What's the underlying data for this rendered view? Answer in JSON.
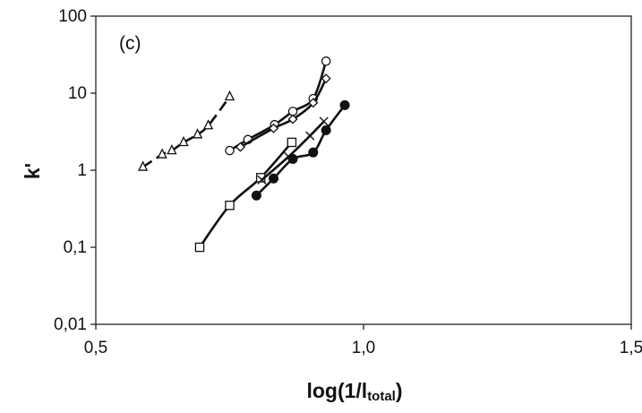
{
  "chart_data": {
    "type": "scatter",
    "panel_label": "(c)",
    "xlabel": "log(1/l",
    "xlabel_sub": "total",
    "xlabel_close": ")",
    "ylabel": "k'",
    "xlim": [
      0.5,
      1.5
    ],
    "ylim": [
      0.01,
      100
    ],
    "yscale": "log",
    "grid": false,
    "x_ticks": [
      {
        "value": 0.5,
        "label": "0,5"
      },
      {
        "value": 1.0,
        "label": "1,0"
      },
      {
        "value": 1.5,
        "label": "1,5"
      }
    ],
    "y_ticks": [
      {
        "value": 0.01,
        "label": "0,01"
      },
      {
        "value": 0.1,
        "label": "0,1"
      },
      {
        "value": 1,
        "label": "1"
      },
      {
        "value": 10,
        "label": "10"
      },
      {
        "value": 100,
        "label": "100"
      }
    ],
    "series": [
      {
        "marker": "triangle-open",
        "line": "dashed",
        "points": [
          [
            0.588,
            1.1
          ],
          [
            0.624,
            1.6
          ],
          [
            0.642,
            1.8
          ],
          [
            0.664,
            2.3
          ],
          [
            0.69,
            2.9
          ],
          [
            0.71,
            3.8
          ],
          [
            0.75,
            9.0
          ]
        ]
      },
      {
        "marker": "circle-open",
        "line": "solid",
        "points": [
          [
            0.75,
            1.8
          ],
          [
            0.784,
            2.5
          ],
          [
            0.834,
            3.9
          ],
          [
            0.868,
            5.8
          ],
          [
            0.906,
            8.5
          ],
          [
            0.93,
            26
          ]
        ]
      },
      {
        "marker": "diamond-open",
        "line": "solid",
        "points": [
          [
            0.77,
            2.0
          ],
          [
            0.832,
            3.5
          ],
          [
            0.868,
            4.6
          ],
          [
            0.906,
            7.5
          ],
          [
            0.93,
            15.5
          ]
        ]
      },
      {
        "marker": "square-open",
        "line": "solid",
        "points": [
          [
            0.694,
            0.1
          ],
          [
            0.75,
            0.35
          ],
          [
            0.808,
            0.8
          ],
          [
            0.866,
            2.3
          ]
        ]
      },
      {
        "marker": "cross",
        "line": "solid",
        "points": [
          [
            0.81,
            0.75
          ],
          [
            0.86,
            1.5
          ],
          [
            0.9,
            2.8
          ],
          [
            0.926,
            4.3
          ]
        ]
      },
      {
        "marker": "circle-filled",
        "line": "solid",
        "points": [
          [
            0.8,
            0.47
          ],
          [
            0.832,
            0.78
          ],
          [
            0.868,
            1.4
          ],
          [
            0.906,
            1.7
          ],
          [
            0.93,
            3.3
          ],
          [
            0.965,
            7.0
          ]
        ]
      }
    ]
  }
}
